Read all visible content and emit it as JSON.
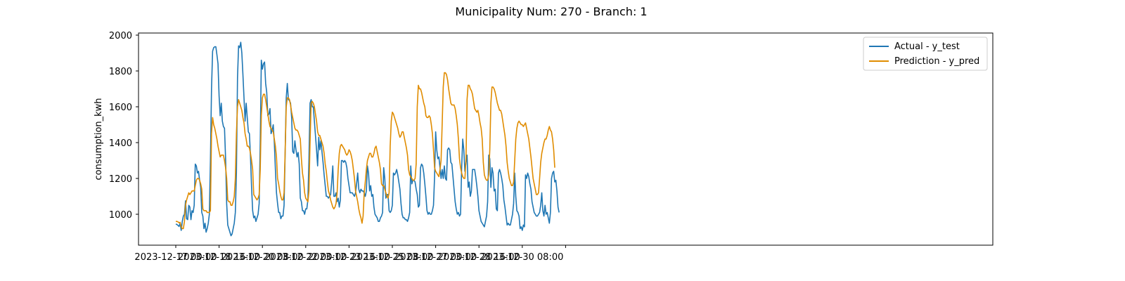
{
  "chart_data": {
    "type": "line",
    "title": "Municipality Num: 270 - Branch: 1",
    "xlabel": "",
    "ylabel": "consumption_kwh",
    "ylim": [
      860,
      2010
    ],
    "yticks": [
      1000,
      1200,
      1400,
      1600,
      1800,
      2000
    ],
    "x_start": "2023-12-17 00:00",
    "x_step_hours": 1,
    "x_tick_hours": [
      0,
      40,
      80,
      120,
      160,
      200,
      240,
      280,
      320,
      360
    ],
    "x_tick_labels": [
      "2023-12-17 00:00",
      "2023-12-18 16:00",
      "2023-12-20 08:00",
      "2023-12-22 00:00",
      "2023-12-23 16:00",
      "2023-12-25 08:00",
      "2023-12-27 00:00",
      "2023-12-28 16:00",
      "2023-12-30 08:00",
      ""
    ],
    "legend_position": "upper right",
    "grid": false,
    "series": [
      {
        "name": "Actual - y_test",
        "color": "#1f77b4",
        "values": [
          945,
          943,
          938,
          932,
          950,
          910,
          960,
          990,
          1000,
          1075,
          975,
          970,
          1050,
          1040,
          970,
          1020,
          1010,
          1050,
          1280,
          1270,
          1230,
          1240,
          1190,
          1150,
          1010,
          990,
          920,
          950,
          900,
          920,
          950,
          1000,
          1300,
          1700,
          1910,
          1930,
          1935,
          1935,
          1890,
          1840,
          1660,
          1550,
          1620,
          1520,
          1490,
          1480,
          1310,
          1060,
          940,
          920,
          900,
          880,
          890,
          920,
          950,
          1010,
          1230,
          1760,
          1940,
          1930,
          1960,
          1900,
          1780,
          1650,
          1520,
          1620,
          1540,
          1460,
          1450,
          1320,
          1150,
          1020,
          980,
          990,
          960,
          980,
          1000,
          1060,
          1400,
          1860,
          1810,
          1840,
          1850,
          1730,
          1680,
          1550,
          1560,
          1590,
          1450,
          1470,
          1500,
          1400,
          1250,
          1120,
          1060,
          1010,
          1010,
          975,
          990,
          990,
          1050,
          1340,
          1650,
          1730,
          1640,
          1635,
          1620,
          1540,
          1350,
          1340,
          1410,
          1360,
          1320,
          1345,
          1280,
          1090,
          1070,
          1020,
          1020,
          1000,
          1030,
          1030,
          1080,
          1310,
          1620,
          1640,
          1600,
          1600,
          1520,
          1440,
          1360,
          1270,
          1430,
          1360,
          1410,
          1350,
          1290,
          1220,
          1160,
          1100,
          1100,
          1090,
          1100,
          1110,
          1180,
          1270,
          1100,
          1100,
          1120,
          1070,
          1090,
          1040,
          1080,
          1300,
          1300,
          1290,
          1300,
          1290,
          1260,
          1200,
          1160,
          1120,
          1120,
          1120,
          1110,
          1100,
          1120,
          1170,
          1230,
          1140,
          1120,
          1140,
          1130,
          1130,
          1120,
          1100,
          1130,
          1270,
          1230,
          1130,
          1160,
          1100,
          1110,
          1040,
          1000,
          990,
          980,
          960,
          960,
          980,
          990,
          1010,
          1260,
          1200,
          1090,
          1110,
          1110,
          1020,
          1010,
          1020,
          1050,
          1230,
          1220,
          1230,
          1250,
          1220,
          1180,
          1140,
          1060,
          1000,
          980,
          980,
          970,
          970,
          960,
          980,
          1010,
          1270,
          1170,
          1190,
          1190,
          1180,
          1140,
          1110,
          1040,
          1050,
          1260,
          1280,
          1270,
          1230,
          1170,
          1100,
          1020,
          1000,
          1010,
          1000,
          1000,
          1020,
          1050,
          1210,
          1460,
          1360,
          1310,
          1320,
          1260,
          1200,
          1250,
          1200,
          1270,
          1200,
          1190,
          1360,
          1370,
          1360,
          1290,
          1280,
          1210,
          1140,
          1070,
          1030,
          1000,
          1010,
          990,
          1000,
          1260,
          1420,
          1360,
          1240,
          1290,
          1330,
          1150,
          1180,
          1100,
          1130,
          1250,
          1250,
          1250,
          1210,
          1160,
          1100,
          1020,
          990,
          960,
          950,
          940,
          930,
          960,
          990,
          1070,
          1330,
          1310,
          1150,
          1260,
          1230,
          1130,
          1140,
          1030,
          1020,
          1230,
          1250,
          1230,
          1200,
          1160,
          1080,
          1040,
          990,
          940,
          950,
          940,
          940,
          970,
          1000,
          1060,
          1230,
          1100,
          1020,
          1010,
          990,
          920,
          930,
          910,
          940,
          930,
          1220,
          1200,
          1230,
          1210,
          1170,
          1140,
          1070,
          1040,
          1010,
          1000,
          990,
          990,
          1000,
          1010,
          1050,
          1120,
          1020,
          990,
          1050,
          1000,
          1010,
          980,
          950,
          1010,
          1200,
          1230,
          1240,
          1180,
          1190,
          1130,
          1040,
          1010
        ]
      },
      {
        "name": "Prediction - y_pred",
        "color": "#e08c00",
        "values": [
          960,
          960,
          958,
          952,
          955,
          930,
          920,
          920,
          960,
          1050,
          1080,
          1100,
          1120,
          1110,
          1120,
          1130,
          1130,
          1130,
          1160,
          1190,
          1200,
          1200,
          1190,
          1170,
          1140,
          1030,
          1020,
          1020,
          1020,
          1010,
          1010,
          1010,
          1020,
          1450,
          1540,
          1500,
          1480,
          1450,
          1420,
          1380,
          1350,
          1320,
          1330,
          1330,
          1330,
          1300,
          1260,
          1200,
          1080,
          1070,
          1070,
          1050,
          1050,
          1070,
          1100,
          1200,
          1450,
          1600,
          1640,
          1620,
          1600,
          1580,
          1540,
          1510,
          1450,
          1420,
          1380,
          1380,
          1370,
          1340,
          1300,
          1250,
          1110,
          1100,
          1090,
          1080,
          1090,
          1110,
          1250,
          1550,
          1650,
          1670,
          1670,
          1640,
          1600,
          1560,
          1520,
          1490,
          1480,
          1470,
          1460,
          1420,
          1380,
          1320,
          1200,
          1170,
          1130,
          1100,
          1080,
          1080,
          1120,
          1350,
          1600,
          1650,
          1650,
          1640,
          1610,
          1570,
          1540,
          1510,
          1480,
          1470,
          1470,
          1460,
          1440,
          1420,
          1310,
          1230,
          1190,
          1120,
          1090,
          1080,
          1070,
          1130,
          1400,
          1620,
          1630,
          1620,
          1600,
          1560,
          1520,
          1460,
          1440,
          1440,
          1420,
          1400,
          1380,
          1340,
          1280,
          1240,
          1180,
          1130,
          1110,
          1080,
          1060,
          1040,
          1030,
          1040,
          1060,
          1120,
          1250,
          1340,
          1380,
          1390,
          1380,
          1370,
          1360,
          1340,
          1330,
          1340,
          1360,
          1350,
          1330,
          1300,
          1250,
          1200,
          1130,
          1100,
          1070,
          1030,
          1000,
          980,
          950,
          990,
          1120,
          1180,
          1250,
          1300,
          1320,
          1340,
          1340,
          1320,
          1320,
          1340,
          1370,
          1380,
          1350,
          1320,
          1290,
          1250,
          1170,
          1160,
          1160,
          1140,
          1120,
          1100,
          1090,
          1120,
          1380,
          1520,
          1570,
          1560,
          1540,
          1520,
          1500,
          1480,
          1450,
          1430,
          1440,
          1460,
          1460,
          1430,
          1400,
          1370,
          1330,
          1250,
          1220,
          1210,
          1200,
          1190,
          1190,
          1200,
          1280,
          1600,
          1720,
          1700,
          1700,
          1680,
          1650,
          1620,
          1600,
          1550,
          1540,
          1540,
          1550,
          1540,
          1500,
          1450,
          1360,
          1260,
          1240,
          1230,
          1220,
          1210,
          1250,
          1300,
          1500,
          1710,
          1790,
          1790,
          1780,
          1750,
          1700,
          1660,
          1620,
          1610,
          1610,
          1610,
          1590,
          1550,
          1500,
          1420,
          1310,
          1260,
          1230,
          1210,
          1200,
          1200,
          1300,
          1640,
          1720,
          1720,
          1700,
          1690,
          1670,
          1630,
          1590,
          1580,
          1570,
          1580,
          1550,
          1510,
          1480,
          1420,
          1290,
          1220,
          1200,
          1190,
          1190,
          1220,
          1360,
          1620,
          1710,
          1710,
          1700,
          1680,
          1650,
          1620,
          1600,
          1580,
          1580,
          1560,
          1520,
          1480,
          1440,
          1380,
          1290,
          1240,
          1200,
          1180,
          1160,
          1160,
          1180,
          1300,
          1420,
          1480,
          1510,
          1520,
          1510,
          1500,
          1500,
          1490,
          1500,
          1510,
          1480,
          1450,
          1420,
          1370,
          1320,
          1260,
          1200,
          1170,
          1140,
          1110,
          1110,
          1120,
          1200,
          1290,
          1340,
          1370,
          1400,
          1420,
          1420,
          1440,
          1470,
          1490,
          1470,
          1460,
          1420,
          1360,
          1260
        ]
      }
    ]
  }
}
